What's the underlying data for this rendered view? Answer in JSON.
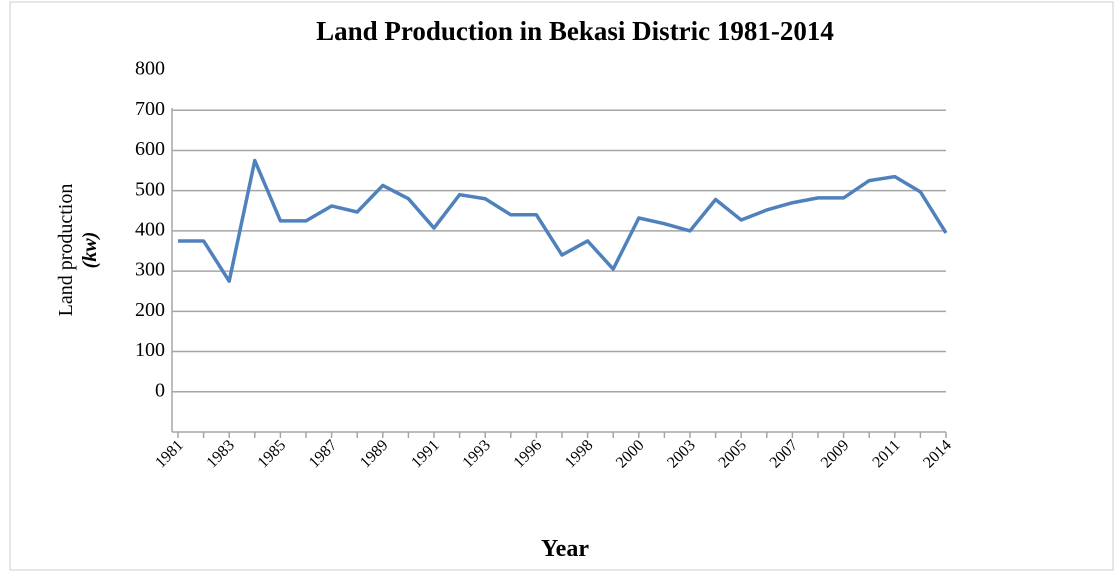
{
  "chart_data": {
    "type": "line",
    "title": "Land Production in Bekasi Distric 1981-2014",
    "y_label": [
      "Land production",
      "(kw)"
    ],
    "x_label": "Year",
    "categories": [
      "1981",
      null,
      "1983",
      null,
      "1985",
      null,
      "1987",
      null,
      "1989",
      null,
      "1991",
      null,
      "1993",
      null,
      "1996",
      null,
      "1998",
      null,
      "2000",
      null,
      "2003",
      null,
      "2005",
      null,
      "2007",
      null,
      "2009",
      null,
      "2011",
      null,
      "2014"
    ],
    "series": [
      {
        "name": "Land production",
        "color": "#4f81bd",
        "values": [
          375,
          375,
          275,
          575,
          425,
          425,
          462,
          447,
          513,
          480,
          407,
          490,
          480,
          440,
          440,
          340,
          375,
          305,
          432,
          418,
          400,
          478,
          427,
          452,
          470,
          482,
          482,
          525,
          535,
          497,
          395
        ]
      }
    ],
    "ylim": [
      -100,
      800
    ],
    "yticks": [
      0,
      100,
      200,
      300,
      400,
      500,
      600,
      700,
      800
    ],
    "grid": true
  }
}
